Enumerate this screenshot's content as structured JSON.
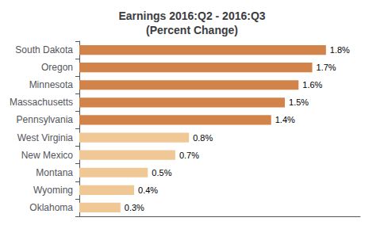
{
  "chart_data": {
    "type": "bar",
    "orientation": "horizontal",
    "title": "Earnings 2016:Q2 - 2016:Q3\n(Percent Change)",
    "categories": [
      "South Dakota",
      "Oregon",
      "Minnesota",
      "Massachusetts",
      "Pennsylvania",
      "West Virginia",
      "New Mexico",
      "Montana",
      "Wyoming",
      "Oklahoma"
    ],
    "values": [
      1.8,
      1.7,
      1.6,
      1.5,
      1.4,
      0.8,
      0.7,
      0.5,
      0.4,
      0.3
    ],
    "value_labels": [
      "1.8%",
      "1.7%",
      "1.6%",
      "1.5%",
      "1.4%",
      "0.8%",
      "0.7%",
      "0.5%",
      "0.4%",
      "0.3%"
    ],
    "colors": [
      "#D2834A",
      "#D2834A",
      "#D2834A",
      "#D2834A",
      "#D2834A",
      "#F0C896",
      "#F0C896",
      "#F0C896",
      "#F0C896",
      "#F0C896"
    ],
    "xlim": [
      0,
      2.05
    ],
    "data_labels": true,
    "tick_labels": "y",
    "grid": false
  }
}
